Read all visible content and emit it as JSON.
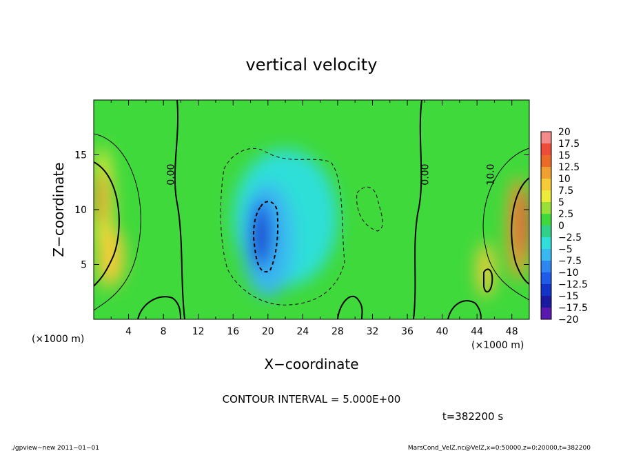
{
  "chart_data": {
    "type": "heatmap",
    "title": "vertical velocity",
    "xlabel": "X−coordinate",
    "ylabel": "Z−coordinate",
    "x_unit": "(×1000 m)",
    "y_unit": "(×1000 m)",
    "xlim": [
      0,
      50
    ],
    "ylim": [
      0,
      20
    ],
    "x_ticks": [
      4,
      8,
      12,
      16,
      20,
      24,
      28,
      32,
      36,
      40,
      44,
      48
    ],
    "x_tick_labels": [
      "4",
      "8",
      "12",
      "16",
      "20",
      "24",
      "28",
      "32",
      "36",
      "40",
      "44",
      "48"
    ],
    "y_ticks": [
      5,
      10,
      15
    ],
    "y_tick_labels": [
      "5",
      "10",
      "15"
    ],
    "colorbar": {
      "levels": [
        20,
        17.5,
        15,
        12.5,
        10,
        7.5,
        5,
        2.5,
        0,
        -2.5,
        -5,
        -7.5,
        -10,
        -12.5,
        -15,
        -17.5,
        -20
      ],
      "labels": [
        "20",
        "17.5",
        "15",
        "12.5",
        "10",
        "7.5",
        "5",
        "2.5",
        "0",
        "−2.5",
        "−5",
        "−7.5",
        "−10",
        "−12.5",
        "−15",
        "−17.5",
        "−20"
      ],
      "colors": [
        "#f48a8a",
        "#ee4c3a",
        "#ec6a28",
        "#f0a030",
        "#f5cc38",
        "#eceb3c",
        "#98df38",
        "#3fd93c",
        "#30d08a",
        "#2fdfd8",
        "#3ab8f0",
        "#2e86f0",
        "#1f5ae8",
        "#1433c8",
        "#1a1aa0",
        "#5a1ab0"
      ]
    },
    "contour_labels": [
      {
        "text": "0.00",
        "x": 8.9,
        "z": 13.2
      },
      {
        "text": "0.00",
        "x": 38.1,
        "z": 13.2
      },
      {
        "text": "10.0",
        "x": 45.6,
        "z": 13.2
      }
    ],
    "cells": [
      {
        "x0": 0,
        "x1": 1.2,
        "z0": 0,
        "z1": 20,
        "v": 1.5
      },
      {
        "x0": 0,
        "x1": 2.2,
        "z0": 5.5,
        "z1": 15.5,
        "v": 6
      },
      {
        "x0": 0,
        "x1": 1.6,
        "z0": 8.5,
        "z1": 13.5,
        "v": 11
      },
      {
        "x0": 0.5,
        "x1": 3.5,
        "z0": 3,
        "z1": 8.5,
        "v": 9
      },
      {
        "x0": 16,
        "x1": 28,
        "z0": 3,
        "z1": 15.5,
        "v": -3
      },
      {
        "x0": 17,
        "x1": 23,
        "z0": 2,
        "z1": 12.5,
        "v": -6
      },
      {
        "x0": 18,
        "x1": 20.5,
        "z0": 4.5,
        "z1": 11,
        "v": -10.5
      },
      {
        "x0": 18.5,
        "x1": 20,
        "z0": 5.5,
        "z1": 9.5,
        "v": -13
      },
      {
        "x0": 47.5,
        "x1": 50,
        "z0": 3.5,
        "z1": 13,
        "v": 10
      },
      {
        "x0": 48.5,
        "x1": 50,
        "z0": 5.5,
        "z1": 12,
        "v": 15
      },
      {
        "x0": 44,
        "x1": 46,
        "z0": 2,
        "z1": 7,
        "v": 8
      }
    ]
  },
  "info": {
    "contour_interval": "CONTOUR INTERVAL = 5.000E+00",
    "time": "t=382200 s",
    "footer_left": "./gpview−new   2011−01−01",
    "footer_right": "MarsCond_VelZ.nc@VelZ,x=0:50000,z=0:20000,t=382200"
  }
}
